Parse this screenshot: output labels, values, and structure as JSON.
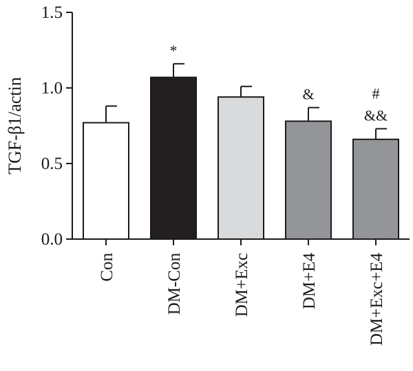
{
  "chart_data": {
    "type": "bar",
    "title": "",
    "xlabel": "",
    "ylabel": "TGF-β1/actin",
    "ylim": [
      0,
      1.5
    ],
    "yticks": [
      "0.0",
      "0.5",
      "1.0",
      "1.5"
    ],
    "grid": false,
    "categories": [
      "Con",
      "DM-Con",
      "DM+Exc",
      "DM+E4",
      "DM+Exc+E4"
    ],
    "values": [
      0.77,
      1.07,
      0.94,
      0.78,
      0.66
    ],
    "errors": [
      0.11,
      0.09,
      0.07,
      0.09,
      0.07
    ],
    "colors": [
      "#ffffff",
      "#231f20",
      "#d9dadb",
      "#939598",
      "#939598"
    ],
    "annotations": [
      {
        "category": "DM-Con",
        "text": "*"
      },
      {
        "category": "DM+E4",
        "text": "&"
      },
      {
        "category": "DM+Exc+E4",
        "text": "&&"
      },
      {
        "category": "DM+Exc+E4",
        "text": "#"
      }
    ]
  }
}
